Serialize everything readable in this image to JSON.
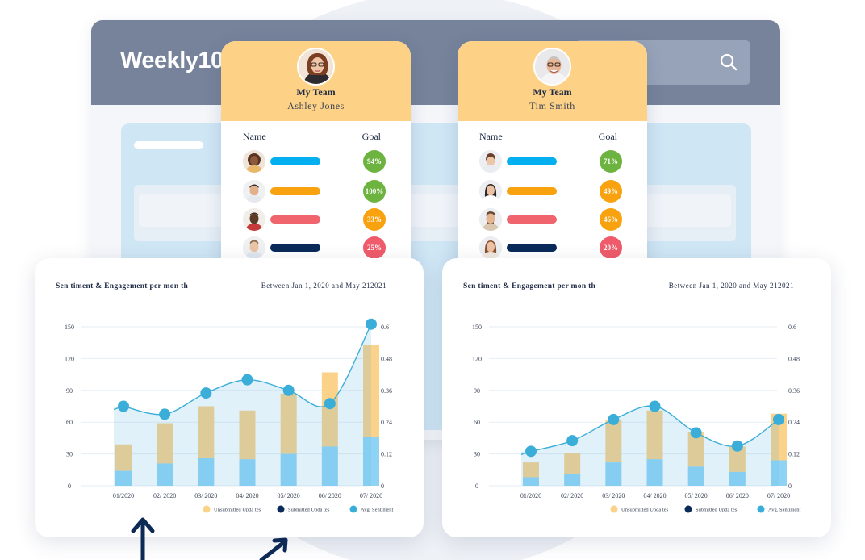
{
  "app": {
    "logo": "Weekly10"
  },
  "teams": [
    {
      "title": "My Team",
      "manager": "Ashley Jones",
      "col_name": "Name",
      "col_goal": "Goal",
      "members": [
        {
          "bar_color": "#04aff0",
          "goal": "94%",
          "goal_color": "#6db33f"
        },
        {
          "bar_color": "#f9a20f",
          "goal": "100%",
          "goal_color": "#6db33f"
        },
        {
          "bar_color": "#f0646e",
          "goal": "33%",
          "goal_color": "#f9a20f"
        },
        {
          "bar_color": "#0a2a5a",
          "goal": "25%",
          "goal_color": "#ef5b6a"
        }
      ]
    },
    {
      "title": "My Team",
      "manager": "Tim Smith",
      "col_name": "Name",
      "col_goal": "Goal",
      "members": [
        {
          "bar_color": "#04aff0",
          "goal": "71%",
          "goal_color": "#6db33f"
        },
        {
          "bar_color": "#f9a20f",
          "goal": "49%",
          "goal_color": "#f9a20f"
        },
        {
          "bar_color": "#f0646e",
          "goal": "46%",
          "goal_color": "#f9a20f"
        },
        {
          "bar_color": "#0a2a5a",
          "goal": "20%",
          "goal_color": "#ef5b6a"
        }
      ]
    }
  ],
  "chart_data": [
    {
      "type": "bar",
      "title": "Sen timent & Engagement per mon    th",
      "range_text": "Between Jan 1, 2020 and May   212021",
      "categories": [
        "01/2020",
        "02/ 2020",
        "03/ 2020",
        "04/  2020",
        "05/ 2020",
        "06/ 2020",
        "07/ 2020"
      ],
      "left_ticks": [
        "150",
        "120",
        "90",
        "60",
        "30",
        "0"
      ],
      "right_ticks": [
        "0.6",
        "0.48",
        "0.36",
        "0.24",
        "0.12",
        "0"
      ],
      "ylim": [
        0,
        150
      ],
      "y2lim": [
        0,
        0.6
      ],
      "series": [
        {
          "name": "Submitted Upda   tes",
          "values": [
            14,
            21,
            26,
            25,
            30,
            37,
            46
          ]
        },
        {
          "name": "Unsubmitted Upda   tes",
          "values": [
            25,
            38,
            49,
            46,
            57,
            70,
            87
          ]
        },
        {
          "name": "Avg. Sentiment",
          "values": [
            0.3,
            0.27,
            0.35,
            0.4,
            0.36,
            0.31,
            0.61
          ]
        }
      ],
      "legend": [
        {
          "label": "Unsubmitted Upda   tes",
          "color": "#fbd28a"
        },
        {
          "label": "Submitted Upda   tes",
          "color": "#0a2a5a"
        },
        {
          "label": "Avg. Sentiment",
          "color": "#3aaed8"
        }
      ]
    },
    {
      "type": "bar",
      "title": "Sen timent & Engagement per mon    th",
      "range_text": "Between Jan 1, 2020 and May   212021",
      "categories": [
        "01/2020",
        "02/ 2020",
        "03/ 2020",
        "04/  2020",
        "05/ 2020",
        "06/ 2020",
        "07/ 2020"
      ],
      "left_ticks": [
        "150",
        "120",
        "90",
        "60",
        "30",
        "0"
      ],
      "right_ticks": [
        "0.6",
        "0.48",
        "0.36",
        "0.24",
        "0.12",
        "0"
      ],
      "ylim": [
        0,
        150
      ],
      "y2lim": [
        0,
        0.6
      ],
      "series": [
        {
          "name": "Submitted Upda   tes",
          "values": [
            8,
            11,
            22,
            25,
            18,
            13,
            24
          ]
        },
        {
          "name": "Unsubmitted Upda   tes",
          "values": [
            14,
            20,
            40,
            46,
            33,
            24,
            44
          ]
        },
        {
          "name": "Avg. Sentiment",
          "values": [
            0.13,
            0.17,
            0.25,
            0.3,
            0.2,
            0.15,
            0.25
          ]
        }
      ],
      "legend": [
        {
          "label": "Unsubmitted Upda   tes",
          "color": "#fbd28a"
        },
        {
          "label": "Submitted Upda   tes",
          "color": "#0a2a5a"
        },
        {
          "label": "Avg. Sentiment",
          "color": "#3aaed8"
        }
      ]
    }
  ]
}
